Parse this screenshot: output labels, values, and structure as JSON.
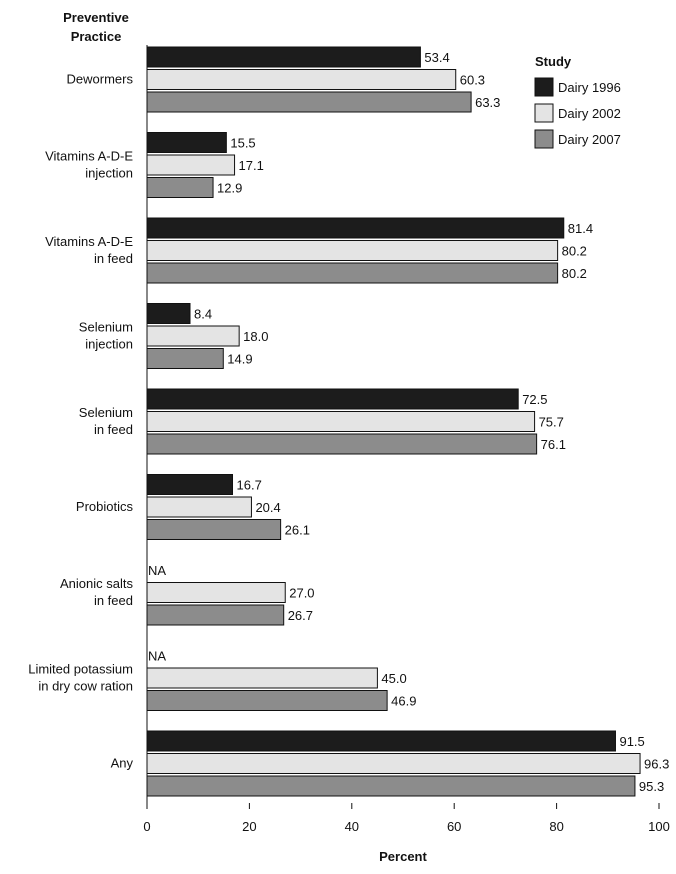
{
  "chart_data": {
    "type": "bar",
    "orientation": "horizontal",
    "title": "",
    "ylabel": [
      "Preventive",
      "Practice"
    ],
    "xlabel": "Percent",
    "xlim": [
      0,
      100
    ],
    "xticks": [
      0,
      20,
      40,
      60,
      80,
      100
    ],
    "grid": false,
    "legend": {
      "title": "Study",
      "placement": "top-right"
    },
    "categories": [
      [
        "Dewormers"
      ],
      [
        "Vitamins A-D-E",
        "injection"
      ],
      [
        "Vitamins A-D-E",
        "in feed"
      ],
      [
        "Selenium",
        "injection"
      ],
      [
        "Selenium",
        "in feed"
      ],
      [
        "Probiotics"
      ],
      [
        "Anionic salts",
        "in feed"
      ],
      [
        "Limited potassium",
        "in dry cow ration"
      ],
      [
        "Any"
      ]
    ],
    "na_label": "NA",
    "series": [
      {
        "name": "Dairy 1996",
        "color": "#1c1c1c",
        "values": [
          53.4,
          15.5,
          81.4,
          8.4,
          72.5,
          16.7,
          null,
          null,
          91.5
        ]
      },
      {
        "name": "Dairy 2002",
        "color": "#e4e4e4",
        "values": [
          60.3,
          17.1,
          80.2,
          18.0,
          75.7,
          20.4,
          27.0,
          45.0,
          96.3
        ]
      },
      {
        "name": "Dairy 2007",
        "color": "#8c8c8c",
        "values": [
          63.3,
          12.9,
          80.2,
          14.9,
          76.1,
          26.1,
          26.7,
          46.9,
          95.3
        ]
      }
    ]
  }
}
